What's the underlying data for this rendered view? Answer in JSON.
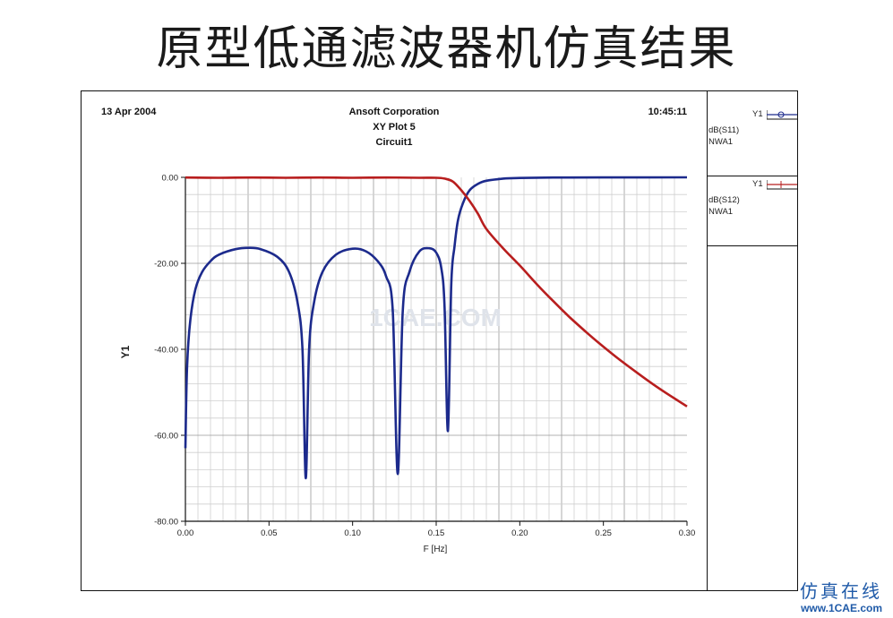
{
  "slide": {
    "title": "原型低通滤波器机仿真结果"
  },
  "plot_header": {
    "date": "13 Apr 2004",
    "company": "Ansoft Corporation",
    "plot_name": "XY Plot 5",
    "circuit": "Circuit1",
    "time": "10:45:11"
  },
  "legend": {
    "entries": [
      {
        "axis": "Y1",
        "trace": "dB(S11)",
        "sweep": "NWA1",
        "color": "#1c2a8c"
      },
      {
        "axis": "Y1",
        "trace": "dB(S12)",
        "sweep": "NWA1",
        "color": "#b81e1e"
      }
    ]
  },
  "watermark": {
    "site": "1CAE.COM"
  },
  "footer": {
    "text_cn": "仿真在线",
    "url": "www.1CAE.com"
  },
  "chart_data": {
    "type": "line",
    "xlabel": "F [Hz]",
    "ylabel": "Y1",
    "xlim": [
      0.0,
      0.3
    ],
    "ylim": [
      -80.0,
      0.0
    ],
    "x_ticks": [
      "0.00",
      "0.05",
      "0.10",
      "0.15",
      "0.20",
      "0.25",
      "0.30"
    ],
    "y_ticks": [
      "0.00",
      "-20.00",
      "-40.00",
      "-60.00",
      "-80.00"
    ],
    "grid": true,
    "series": [
      {
        "name": "dB(S11)",
        "color": "#1c2a8c",
        "x": [
          0.0,
          0.001,
          0.003,
          0.006,
          0.01,
          0.015,
          0.02,
          0.03,
          0.038,
          0.045,
          0.055,
          0.062,
          0.067,
          0.07,
          0.072,
          0.074,
          0.077,
          0.082,
          0.09,
          0.1,
          0.108,
          0.115,
          0.12,
          0.124,
          0.127,
          0.13,
          0.134,
          0.14,
          0.146,
          0.15,
          0.153,
          0.155,
          0.157,
          0.159,
          0.161,
          0.163,
          0.166,
          0.17,
          0.175,
          0.18,
          0.19,
          0.2,
          0.22,
          0.25,
          0.3
        ],
        "y": [
          -63,
          -44,
          -33,
          -26,
          -22,
          -19.5,
          -18,
          -16.7,
          -16.4,
          -16.7,
          -18.5,
          -22,
          -29,
          -40,
          -70,
          -40,
          -29,
          -22,
          -18,
          -16.6,
          -17.2,
          -19.5,
          -23,
          -31,
          -69,
          -31,
          -22,
          -17.2,
          -16.5,
          -17.5,
          -21,
          -30,
          -59,
          -25,
          -16,
          -10,
          -6,
          -3,
          -1.5,
          -0.8,
          -0.3,
          -0.15,
          -0.05,
          -0.02,
          -0.01
        ]
      },
      {
        "name": "dB(S12)",
        "color": "#b81e1e",
        "x": [
          0.0,
          0.02,
          0.04,
          0.06,
          0.08,
          0.1,
          0.12,
          0.14,
          0.15,
          0.155,
          0.16,
          0.165,
          0.17,
          0.175,
          0.18,
          0.19,
          0.2,
          0.21,
          0.22,
          0.23,
          0.24,
          0.25,
          0.26,
          0.27,
          0.28,
          0.29,
          0.3
        ],
        "y": [
          -0.05,
          -0.1,
          -0.05,
          -0.1,
          -0.05,
          -0.1,
          -0.05,
          -0.1,
          -0.1,
          -0.3,
          -1.0,
          -3.0,
          -5.5,
          -8.5,
          -12,
          -16.5,
          -20.5,
          -24.8,
          -28.8,
          -32.6,
          -36.1,
          -39.4,
          -42.5,
          -45.4,
          -48.2,
          -50.8,
          -53.3
        ]
      }
    ]
  }
}
